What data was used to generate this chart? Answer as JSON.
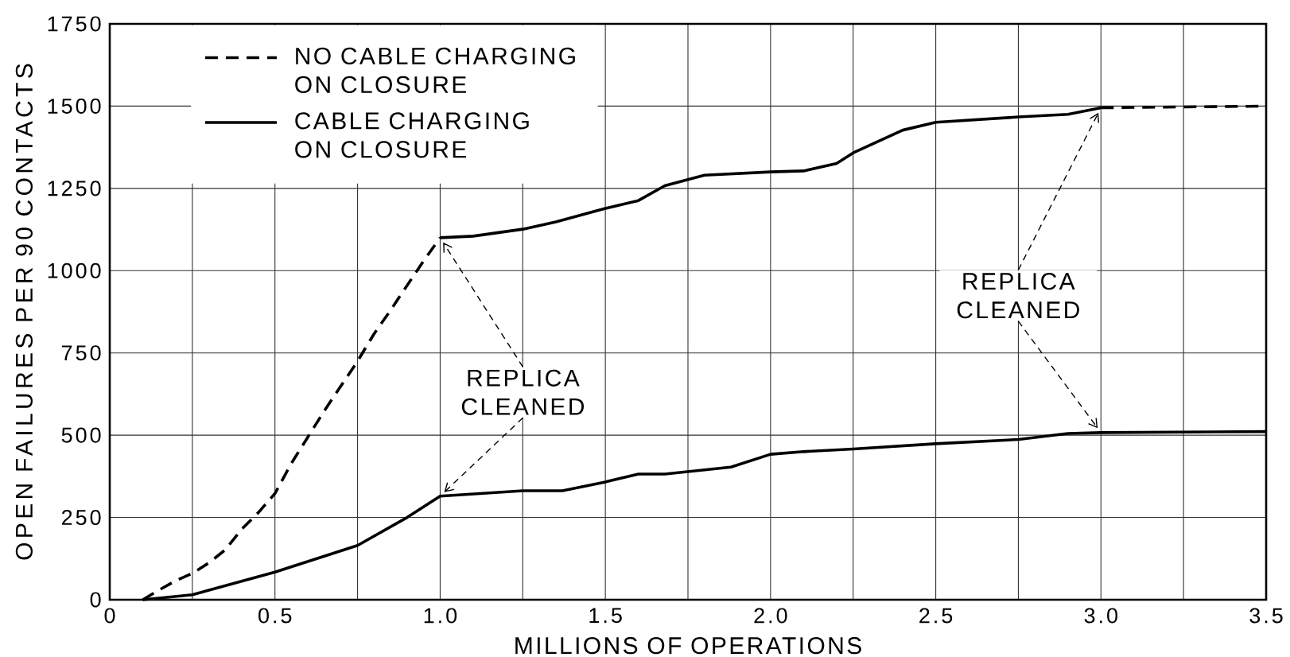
{
  "chart_data": {
    "type": "line",
    "xlabel": "MILLIONS OF OPERATIONS",
    "ylabel": "OPEN FAILURES PER 90 CONTACTS",
    "xlim": [
      0,
      3.5
    ],
    "ylim": [
      0,
      1750
    ],
    "xticks": [
      0,
      {
        "value": 0.25,
        "label": null
      },
      0.5,
      {
        "value": 0.75,
        "label": null
      },
      {
        "value": 1,
        "label": "1.0"
      },
      {
        "value": 1.25,
        "label": null
      },
      1.5,
      {
        "value": 1.75,
        "label": null
      },
      {
        "value": 2,
        "label": "2.0"
      },
      {
        "value": 2.25,
        "label": null
      },
      2.5,
      {
        "value": 2.75,
        "label": null
      },
      {
        "value": 3,
        "label": "3.0"
      },
      {
        "value": 3.25,
        "label": null
      },
      3.5
    ],
    "yticks": [
      0,
      250,
      500,
      750,
      1000,
      1250,
      1500,
      1750
    ],
    "grid": true,
    "legend": "top left",
    "series": [
      {
        "name": "NO CABLE CHARGING ON CLOSURE",
        "color": "#000000",
        "line_style": "dashed",
        "x": [
          0.1,
          0.15,
          0.2,
          0.25,
          0.3,
          0.35,
          0.4,
          0.45,
          0.5,
          0.55,
          0.6,
          0.65,
          0.7,
          0.75,
          0.8,
          0.85,
          0.9,
          0.95,
          1.0,
          2.0,
          3.0,
          3.5
        ],
        "values": [
          0,
          30,
          58,
          80,
          112,
          152,
          215,
          265,
          323,
          415,
          495,
          575,
          650,
          725,
          808,
          880,
          955,
          1030,
          1100,
          null,
          1495,
          1500
        ]
      },
      {
        "name": "CABLE CHARGING ON CLOSURE",
        "color": "#000000",
        "line_style": "solid",
        "x": [
          1.0,
          1.1,
          1.25,
          1.35,
          1.5,
          1.6,
          1.68,
          1.75,
          1.8,
          2.0,
          2.1,
          2.2,
          2.25,
          2.4,
          2.5,
          2.75,
          2.9,
          3.0
        ],
        "values": [
          1100,
          1105,
          1126,
          1148,
          1189,
          1213,
          1258,
          1277,
          1290,
          1300,
          1303,
          1326,
          1358,
          1427,
          1451,
          1467,
          1475,
          1495
        ]
      },
      {
        "color": "#000000",
        "line_style": "solid",
        "x": [
          0.1,
          0.25,
          0.5,
          0.75,
          0.9,
          1.0,
          1.25,
          1.37,
          1.5,
          1.6,
          1.68,
          1.88,
          2.0,
          2.1,
          2.25,
          2.5,
          2.75,
          2.9,
          3.0,
          3.5
        ],
        "values": [
          0,
          15,
          84,
          165,
          250,
          315,
          331,
          331,
          358,
          382,
          382,
          403,
          442,
          450,
          458,
          474,
          487,
          505,
          508,
          511
        ]
      }
    ],
    "annotations": [
      {
        "text": "REPLICA CLEANED",
        "x": 1,
        "y": 1100
      },
      {
        "text": "REPLICA CLEANED",
        "x": 3,
        "y": 1495
      }
    ]
  }
}
